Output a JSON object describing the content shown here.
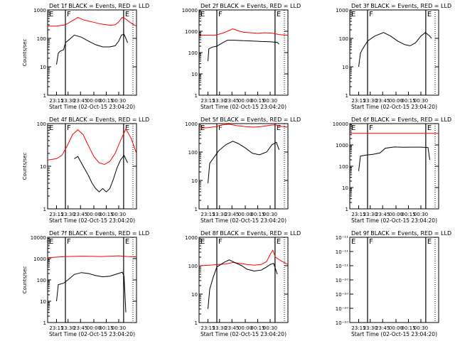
{
  "page": {
    "xlabel": "Start Time (02-Oct-15 23:04:20)"
  },
  "chart_data": [
    {
      "type": "line",
      "title": "Det 1f BLACK = Events, RED = LLD",
      "ylabel": "Counts/sec",
      "ylim": [
        1,
        1000
      ],
      "log_y": true,
      "x_ticks": [
        "23:15",
        "23:30",
        "23:45",
        "00:00",
        "00:15",
        "00:30"
      ],
      "markers": [
        {
          "label": "F",
          "x": 0.2
        },
        {
          "label": "E",
          "x": 0.855
        }
      ],
      "series": [
        {
          "color": "#ff0000",
          "values": [
            [
              0.0,
              270
            ],
            [
              0.1,
              270
            ],
            [
              0.2,
              300
            ],
            [
              0.28,
              420
            ],
            [
              0.34,
              550
            ],
            [
              0.4,
              450
            ],
            [
              0.5,
              380
            ],
            [
              0.6,
              320
            ],
            [
              0.7,
              290
            ],
            [
              0.76,
              300
            ],
            [
              0.8,
              380
            ],
            [
              0.84,
              550
            ],
            [
              0.88,
              480
            ],
            [
              0.92,
              380
            ],
            [
              0.97,
              300
            ],
            [
              1.0,
              270
            ]
          ]
        },
        {
          "color": "#000000",
          "values": [
            [
              0.1,
              12
            ],
            [
              0.12,
              30
            ],
            [
              0.14,
              35
            ],
            [
              0.18,
              40
            ],
            [
              0.2,
              70
            ],
            [
              0.25,
              95
            ],
            [
              0.3,
              130
            ],
            [
              0.38,
              110
            ],
            [
              0.46,
              80
            ],
            [
              0.54,
              60
            ],
            [
              0.62,
              50
            ],
            [
              0.7,
              50
            ],
            [
              0.76,
              55
            ],
            [
              0.8,
              80
            ],
            [
              0.83,
              130
            ],
            [
              0.86,
              140
            ],
            [
              0.88,
              100
            ],
            [
              0.9,
              70
            ]
          ]
        }
      ]
    },
    {
      "type": "line",
      "title": "Det 2f BLACK = Events, RED = LLD",
      "ylabel": "",
      "ylim": [
        1,
        10000
      ],
      "log_y": true,
      "x_ticks": [
        "23:15",
        "23:30",
        "23:45",
        "00:00",
        "00:15",
        "00:30"
      ],
      "markers": [
        {
          "label": "F",
          "x": 0.2
        },
        {
          "label": "E",
          "x": 0.855
        }
      ],
      "series": [
        {
          "color": "#ff0000",
          "values": [
            [
              0.0,
              650
            ],
            [
              0.18,
              650
            ],
            [
              0.26,
              800
            ],
            [
              0.32,
              1000
            ],
            [
              0.38,
              1300
            ],
            [
              0.44,
              1050
            ],
            [
              0.5,
              900
            ],
            [
              0.58,
              850
            ],
            [
              0.66,
              800
            ],
            [
              0.74,
              850
            ],
            [
              0.82,
              820
            ],
            [
              0.9,
              700
            ],
            [
              1.0,
              650
            ]
          ]
        },
        {
          "color": "#000000",
          "values": [
            [
              0.1,
              40
            ],
            [
              0.11,
              150
            ],
            [
              0.15,
              180
            ],
            [
              0.2,
              200
            ],
            [
              0.26,
              280
            ],
            [
              0.32,
              380
            ],
            [
              0.4,
              380
            ],
            [
              0.5,
              360
            ],
            [
              0.6,
              350
            ],
            [
              0.7,
              330
            ],
            [
              0.8,
              320
            ],
            [
              0.88,
              300
            ],
            [
              0.9,
              250
            ]
          ]
        }
      ]
    },
    {
      "type": "line",
      "title": "Det 3f BLACK = Events, RED = LLD",
      "ylabel": "",
      "ylim": [
        1,
        1000
      ],
      "log_y": true,
      "x_ticks": [
        "23:15",
        "23:30",
        "23:45",
        "00:00",
        "00:15",
        "00:30"
      ],
      "markers": [
        {
          "label": "F",
          "x": 0.2
        },
        {
          "label": "E",
          "x": 0.855
        }
      ],
      "series": [
        {
          "color": "#000000",
          "values": [
            [
              0.1,
              10
            ],
            [
              0.12,
              30
            ],
            [
              0.14,
              40
            ],
            [
              0.2,
              80
            ],
            [
              0.28,
              120
            ],
            [
              0.38,
              160
            ],
            [
              0.46,
              120
            ],
            [
              0.54,
              80
            ],
            [
              0.62,
              60
            ],
            [
              0.68,
              55
            ],
            [
              0.74,
              70
            ],
            [
              0.8,
              120
            ],
            [
              0.85,
              160
            ],
            [
              0.9,
              120
            ],
            [
              0.92,
              100
            ]
          ]
        }
      ]
    },
    {
      "type": "line",
      "title": "Det 4f BLACK = Events, RED = LLD",
      "ylabel": "Counts/sec",
      "ylim": [
        1,
        100
      ],
      "log_y": true,
      "x_ticks": [
        "23:15",
        "23:30",
        "23:45",
        "00:00",
        "00:15",
        "00:30"
      ],
      "markers": [
        {
          "label": "F",
          "x": 0.2
        },
        {
          "label": "E",
          "x": 0.855
        }
      ],
      "series": [
        {
          "color": "#ff0000",
          "values": [
            [
              0.0,
              14
            ],
            [
              0.1,
              15
            ],
            [
              0.16,
              18
            ],
            [
              0.22,
              30
            ],
            [
              0.28,
              55
            ],
            [
              0.34,
              72
            ],
            [
              0.4,
              55
            ],
            [
              0.46,
              30
            ],
            [
              0.52,
              17
            ],
            [
              0.58,
              12
            ],
            [
              0.64,
              11
            ],
            [
              0.7,
              13
            ],
            [
              0.76,
              20
            ],
            [
              0.82,
              40
            ],
            [
              0.88,
              75
            ],
            [
              0.94,
              45
            ],
            [
              1.0,
              20
            ]
          ]
        },
        {
          "color": "#000000",
          "values": [
            [
              0.3,
              15
            ],
            [
              0.34,
              17
            ],
            [
              0.4,
              10
            ],
            [
              0.46,
              6
            ],
            [
              0.5,
              4
            ],
            [
              0.54,
              3
            ],
            [
              0.58,
              2.5
            ],
            [
              0.62,
              3
            ],
            [
              0.66,
              2.5
            ],
            [
              0.7,
              3
            ],
            [
              0.74,
              5
            ],
            [
              0.78,
              9
            ],
            [
              0.82,
              14
            ],
            [
              0.86,
              18
            ],
            [
              0.9,
              12
            ]
          ]
        }
      ]
    },
    {
      "type": "line",
      "title": "Det 5f BLACK = Events, RED = LLD",
      "ylabel": "",
      "ylim": [
        1,
        1000
      ],
      "log_y": true,
      "x_ticks": [
        "23:15",
        "23:30",
        "23:45",
        "00:00",
        "00:15",
        "00:30"
      ],
      "markers": [
        {
          "label": "F",
          "x": 0.2
        },
        {
          "label": "E",
          "x": 0.855
        }
      ],
      "series": [
        {
          "color": "#ff0000",
          "values": [
            [
              0.0,
              700
            ],
            [
              0.1,
              720
            ],
            [
              0.18,
              780
            ],
            [
              0.26,
              900
            ],
            [
              0.34,
              950
            ],
            [
              0.42,
              850
            ],
            [
              0.52,
              780
            ],
            [
              0.62,
              750
            ],
            [
              0.72,
              800
            ],
            [
              0.8,
              880
            ],
            [
              0.86,
              900
            ],
            [
              0.92,
              800
            ],
            [
              1.0,
              750
            ]
          ]
        },
        {
          "color": "#000000",
          "values": [
            [
              0.1,
              8
            ],
            [
              0.12,
              40
            ],
            [
              0.16,
              60
            ],
            [
              0.22,
              110
            ],
            [
              0.3,
              180
            ],
            [
              0.38,
              240
            ],
            [
              0.44,
              200
            ],
            [
              0.52,
              140
            ],
            [
              0.6,
              90
            ],
            [
              0.68,
              80
            ],
            [
              0.76,
              100
            ],
            [
              0.82,
              180
            ],
            [
              0.87,
              220
            ],
            [
              0.9,
              120
            ]
          ]
        }
      ]
    },
    {
      "type": "line",
      "title": "Det 6f BLACK = Events, RED = LLD",
      "ylabel": "",
      "ylim": [
        1,
        10000
      ],
      "log_y": true,
      "x_ticks": [
        "23:15",
        "23:30",
        "23:45",
        "00:00",
        "00:15",
        "00:30"
      ],
      "markers": [
        {
          "label": "F",
          "x": 0.2
        },
        {
          "label": "E",
          "x": 0.855
        }
      ],
      "series": [
        {
          "color": "#ff0000",
          "values": [
            [
              0.0,
              3500
            ],
            [
              1.0,
              3500
            ]
          ]
        },
        {
          "color": "#000000",
          "values": [
            [
              0.1,
              60
            ],
            [
              0.12,
              300
            ],
            [
              0.18,
              330
            ],
            [
              0.26,
              360
            ],
            [
              0.34,
              420
            ],
            [
              0.4,
              700
            ],
            [
              0.5,
              800
            ],
            [
              0.6,
              780
            ],
            [
              0.7,
              790
            ],
            [
              0.8,
              790
            ],
            [
              0.88,
              760
            ],
            [
              0.9,
              200
            ]
          ]
        }
      ]
    },
    {
      "type": "line",
      "title": "Det 7f BLACK = Events, RED = LLD",
      "ylabel": "Counts/sec",
      "ylim": [
        1,
        10000
      ],
      "log_y": true,
      "x_ticks": [
        "23:15",
        "23:30",
        "23:45",
        "00:00",
        "00:15",
        "00:30"
      ],
      "markers": [
        {
          "label": "F",
          "x": 0.2
        },
        {
          "label": "E",
          "x": 0.855
        }
      ],
      "series": [
        {
          "color": "#ff0000",
          "values": [
            [
              0.0,
              1100
            ],
            [
              0.2,
              1250
            ],
            [
              0.4,
              1300
            ],
            [
              0.6,
              1250
            ],
            [
              0.8,
              1350
            ],
            [
              0.9,
              1250
            ],
            [
              1.0,
              1200
            ]
          ]
        },
        {
          "color": "#000000",
          "values": [
            [
              0.1,
              10
            ],
            [
              0.12,
              60
            ],
            [
              0.18,
              70
            ],
            [
              0.24,
              110
            ],
            [
              0.3,
              180
            ],
            [
              0.38,
              220
            ],
            [
              0.46,
              200
            ],
            [
              0.54,
              160
            ],
            [
              0.62,
              140
            ],
            [
              0.7,
              150
            ],
            [
              0.78,
              190
            ],
            [
              0.84,
              230
            ],
            [
              0.86,
              150
            ],
            [
              0.88,
              3
            ]
          ]
        }
      ]
    },
    {
      "type": "line",
      "title": "Det 8f BLACK = Events, RED = LLD",
      "ylabel": "",
      "ylim": [
        1,
        1000
      ],
      "log_y": true,
      "x_ticks": [
        "23:15",
        "23:30",
        "23:45",
        "00:00",
        "00:15",
        "00:30"
      ],
      "markers": [
        {
          "label": "F",
          "x": 0.2
        },
        {
          "label": "E",
          "x": 0.855
        }
      ],
      "series": [
        {
          "color": "#ff0000",
          "values": [
            [
              0.0,
              100
            ],
            [
              0.12,
              105
            ],
            [
              0.22,
              110
            ],
            [
              0.3,
              115
            ],
            [
              0.38,
              130
            ],
            [
              0.46,
              120
            ],
            [
              0.54,
              110
            ],
            [
              0.62,
              105
            ],
            [
              0.7,
              110
            ],
            [
              0.76,
              140
            ],
            [
              0.8,
              250
            ],
            [
              0.83,
              350
            ],
            [
              0.86,
              200
            ],
            [
              0.92,
              150
            ],
            [
              1.0,
              110
            ]
          ]
        },
        {
          "color": "#000000",
          "values": [
            [
              0.1,
              3
            ],
            [
              0.12,
              15
            ],
            [
              0.16,
              40
            ],
            [
              0.2,
              90
            ],
            [
              0.28,
              130
            ],
            [
              0.34,
              160
            ],
            [
              0.4,
              130
            ],
            [
              0.48,
              100
            ],
            [
              0.54,
              75
            ],
            [
              0.62,
              65
            ],
            [
              0.7,
              70
            ],
            [
              0.76,
              90
            ],
            [
              0.8,
              110
            ],
            [
              0.84,
              120
            ],
            [
              0.88,
              50
            ]
          ]
        }
      ]
    },
    {
      "type": "line",
      "title": "Det 9f BLACK = Events, RED = LLD",
      "ylabel": "",
      "ylim": [
        1e-12,
        1e-10
      ],
      "log_y": true,
      "y_ticks": [
        "10⁻¹⁰",
        "10⁻¹⁰",
        "10⁻¹⁰",
        "10⁻¹⁰",
        "10⁻¹¹",
        "10⁻¹¹",
        "10⁻¹¹"
      ],
      "x_ticks": [
        "23:15",
        "23:30",
        "23:45",
        "00:00",
        "00:15",
        "00:30"
      ],
      "markers": [
        {
          "label": "F",
          "x": 0.2
        },
        {
          "label": "E",
          "x": 0.855
        }
      ],
      "series": []
    }
  ]
}
